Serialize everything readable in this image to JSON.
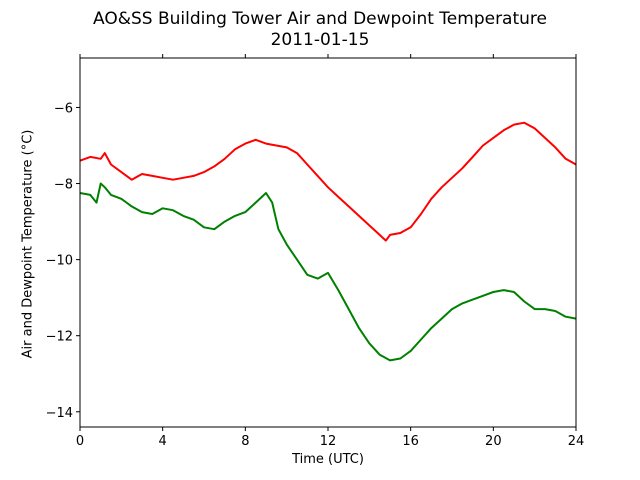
{
  "chart_data": {
    "type": "line",
    "title": "AO&SS Building Tower Air and Dewpoint Temperature",
    "subtitle": "2011-01-15",
    "xlabel": "Time (UTC)",
    "ylabel": "Air and Dewpoint Temperature (°C)",
    "xlim": [
      0,
      24
    ],
    "ylim": [
      -14.4,
      -4.7
    ],
    "xticks": [
      0,
      4,
      8,
      12,
      16,
      20,
      24
    ],
    "yticks": [
      -14,
      -12,
      -10,
      -8,
      -6
    ],
    "grid": false,
    "legend": "none",
    "series": [
      {
        "color": "#ff0000",
        "x": [
          0,
          0.5,
          1,
          1.2,
          1.5,
          2,
          2.5,
          3,
          3.5,
          4,
          4.5,
          5,
          5.5,
          6,
          6.5,
          7,
          7.5,
          8,
          8.5,
          9,
          9.5,
          10,
          10.5,
          11,
          11.5,
          12,
          12.5,
          13,
          13.5,
          14,
          14.5,
          14.8,
          15,
          15.5,
          16,
          16.5,
          17,
          17.5,
          18,
          18.5,
          19,
          19.5,
          20,
          20.5,
          21,
          21.5,
          22,
          22.5,
          23,
          23.5,
          24
        ],
        "y": [
          -7.4,
          -7.3,
          -7.35,
          -7.2,
          -7.5,
          -7.7,
          -7.9,
          -7.75,
          -7.8,
          -7.85,
          -7.9,
          -7.85,
          -7.8,
          -7.7,
          -7.55,
          -7.35,
          -7.1,
          -6.95,
          -6.85,
          -6.95,
          -7.0,
          -7.05,
          -7.2,
          -7.5,
          -7.8,
          -8.1,
          -8.35,
          -8.6,
          -8.85,
          -9.1,
          -9.35,
          -9.5,
          -9.35,
          -9.3,
          -9.15,
          -8.8,
          -8.4,
          -8.1,
          -7.85,
          -7.6,
          -7.3,
          -7.0,
          -6.8,
          -6.6,
          -6.45,
          -6.4,
          -6.55,
          -6.8,
          -7.05,
          -7.35,
          -7.5
        ]
      },
      {
        "color": "#008000",
        "x": [
          0,
          0.5,
          0.8,
          1,
          1.2,
          1.5,
          2,
          2.5,
          3,
          3.5,
          4,
          4.5,
          5,
          5.5,
          6,
          6.5,
          7,
          7.5,
          8,
          8.5,
          9,
          9.3,
          9.6,
          10,
          10.5,
          11,
          11.5,
          12,
          12.5,
          13,
          13.5,
          14,
          14.5,
          15,
          15.5,
          16,
          16.5,
          17,
          17.5,
          18,
          18.5,
          19,
          19.5,
          20,
          20.5,
          21,
          21.5,
          22,
          22.5,
          23,
          23.5,
          24
        ],
        "y": [
          -8.25,
          -8.3,
          -8.5,
          -8.0,
          -8.1,
          -8.3,
          -8.4,
          -8.6,
          -8.75,
          -8.8,
          -8.65,
          -8.7,
          -8.85,
          -8.95,
          -9.15,
          -9.2,
          -9.0,
          -8.85,
          -8.75,
          -8.5,
          -8.25,
          -8.5,
          -9.2,
          -9.6,
          -10.0,
          -10.4,
          -10.5,
          -10.35,
          -10.8,
          -11.3,
          -11.8,
          -12.2,
          -12.5,
          -12.65,
          -12.6,
          -12.4,
          -12.1,
          -11.8,
          -11.55,
          -11.3,
          -11.15,
          -11.05,
          -10.95,
          -10.85,
          -10.8,
          -10.85,
          -11.1,
          -11.3,
          -11.3,
          -11.35,
          -11.5,
          -11.55
        ]
      }
    ]
  }
}
